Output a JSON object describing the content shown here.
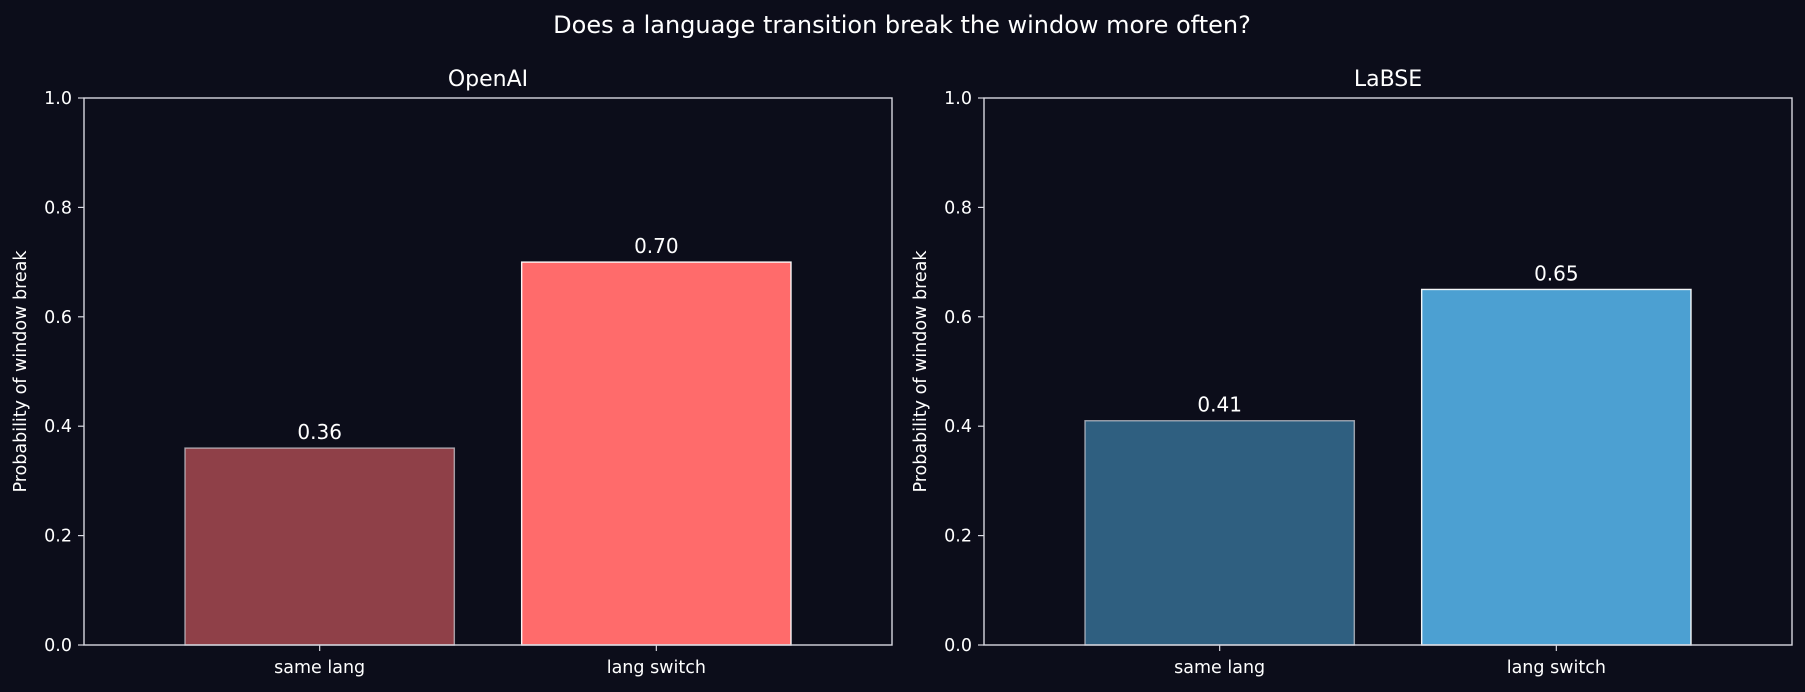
{
  "figure": {
    "title": "Does a language transition break the window more often?"
  },
  "colors": {
    "background": "#0c0d1a",
    "axes": "#d8d8e0",
    "text": "#ffffff"
  },
  "chart_data": [
    {
      "type": "bar",
      "title": "OpenAI",
      "xlabel": "",
      "ylabel": "Probability of window break",
      "categories": [
        "same lang",
        "lang switch"
      ],
      "values": [
        0.36,
        0.7
      ],
      "value_labels": [
        "0.36",
        "0.70"
      ],
      "bar_colors": [
        "#8f4048",
        "#ff6b6b"
      ],
      "ylim": [
        0,
        1.0
      ],
      "yticks": [
        0.0,
        0.2,
        0.4,
        0.6,
        0.8,
        1.0
      ],
      "ytick_labels": [
        "0.0",
        "0.2",
        "0.4",
        "0.6",
        "0.8",
        "1.0"
      ],
      "grid": false
    },
    {
      "type": "bar",
      "title": "LaBSE",
      "xlabel": "",
      "ylabel": "Probability of window break",
      "categories": [
        "same lang",
        "lang switch"
      ],
      "values": [
        0.41,
        0.65
      ],
      "value_labels": [
        "0.41",
        "0.65"
      ],
      "bar_colors": [
        "#2f5f80",
        "#4ca0d2"
      ],
      "ylim": [
        0,
        1.0
      ],
      "yticks": [
        0.0,
        0.2,
        0.4,
        0.6,
        0.8,
        1.0
      ],
      "ytick_labels": [
        "0.0",
        "0.2",
        "0.4",
        "0.6",
        "0.8",
        "1.0"
      ],
      "grid": false
    }
  ]
}
